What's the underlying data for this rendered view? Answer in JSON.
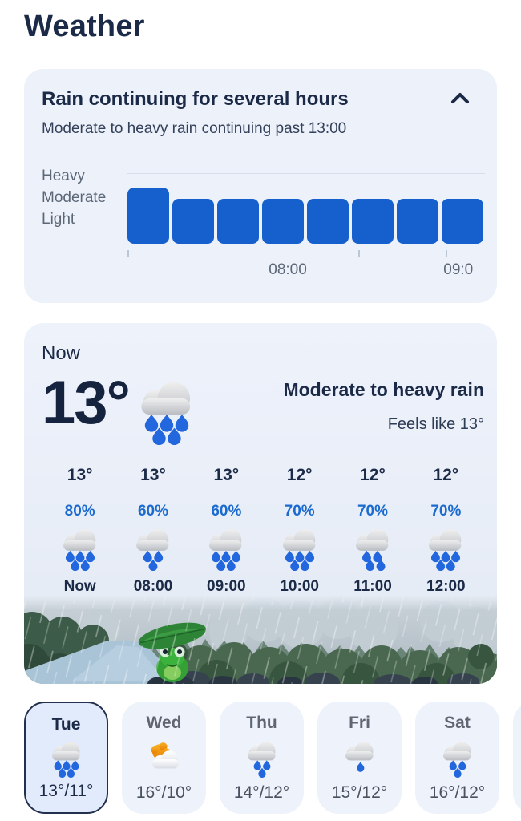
{
  "header": {
    "title": "Weather",
    "menu_icon": "three-dot-vertical-menu"
  },
  "alert_card": {
    "title": "Rain continuing for several hours",
    "subtitle": "Moderate to heavy rain continuing past 13:00",
    "collapse_icon": "chevron-up"
  },
  "chart_data": {
    "type": "bar",
    "y_levels": [
      "Heavy",
      "Moderate",
      "Light"
    ],
    "value_scale": "intensity levels: Light=1, Moderate=2, Heavy=3",
    "values": [
      2.4,
      1.9,
      1.9,
      1.9,
      1.9,
      1.9,
      1.9,
      1.9
    ],
    "max_level": 3,
    "x_labels": [
      "08:00",
      "09:0"
    ],
    "bar_color": "#1660ce",
    "grid": "single horizontal line at Heavy level",
    "legend_position": "left"
  },
  "now_card": {
    "label": "Now",
    "temperature": "13°",
    "condition_icon": "heavy-rain",
    "condition": "Moderate to heavy rain",
    "feels_like": "Feels like 13°",
    "hourly": [
      {
        "time": "Now",
        "temp": "13°",
        "precip": "80%",
        "icon": "heavy-rain"
      },
      {
        "time": "08:00",
        "temp": "13°",
        "precip": "60%",
        "icon": "moderate-rain"
      },
      {
        "time": "09:00",
        "temp": "13°",
        "precip": "60%",
        "icon": "heavy-rain"
      },
      {
        "time": "10:00",
        "temp": "12°",
        "precip": "70%",
        "icon": "heavy-rain"
      },
      {
        "time": "11:00",
        "temp": "12°",
        "precip": "70%",
        "icon": "rain"
      },
      {
        "time": "12:00",
        "temp": "12°",
        "precip": "70%",
        "icon": "heavy-rain"
      }
    ],
    "illustration": "rainy-scene-frog-with-leaf-umbrella"
  },
  "daily_forecast": [
    {
      "day": "Tue",
      "icon": "heavy-rain",
      "temps": "13°/11°",
      "selected": true
    },
    {
      "day": "Wed",
      "icon": "partly-sunny",
      "temps": "16°/10°",
      "selected": false
    },
    {
      "day": "Thu",
      "icon": "moderate-rain",
      "temps": "14°/12°",
      "selected": false
    },
    {
      "day": "Fri",
      "icon": "light-rain",
      "temps": "15°/12°",
      "selected": false
    },
    {
      "day": "Sat",
      "icon": "moderate-rain",
      "temps": "16°/12°",
      "selected": false
    }
  ],
  "colors": {
    "heading_navy": "#1b2a47",
    "secondary_text": "#33415a",
    "muted_gray": "#5c6878",
    "card_background": "#edf1fa",
    "bar_blue": "#1660ce",
    "precip_blue": "#1a6ad0",
    "drop_blue": "#2267dd",
    "selected_day_bg": "#e1ebfc",
    "selected_day_border": "#22304e",
    "sun_orange": "#ef8d00"
  }
}
